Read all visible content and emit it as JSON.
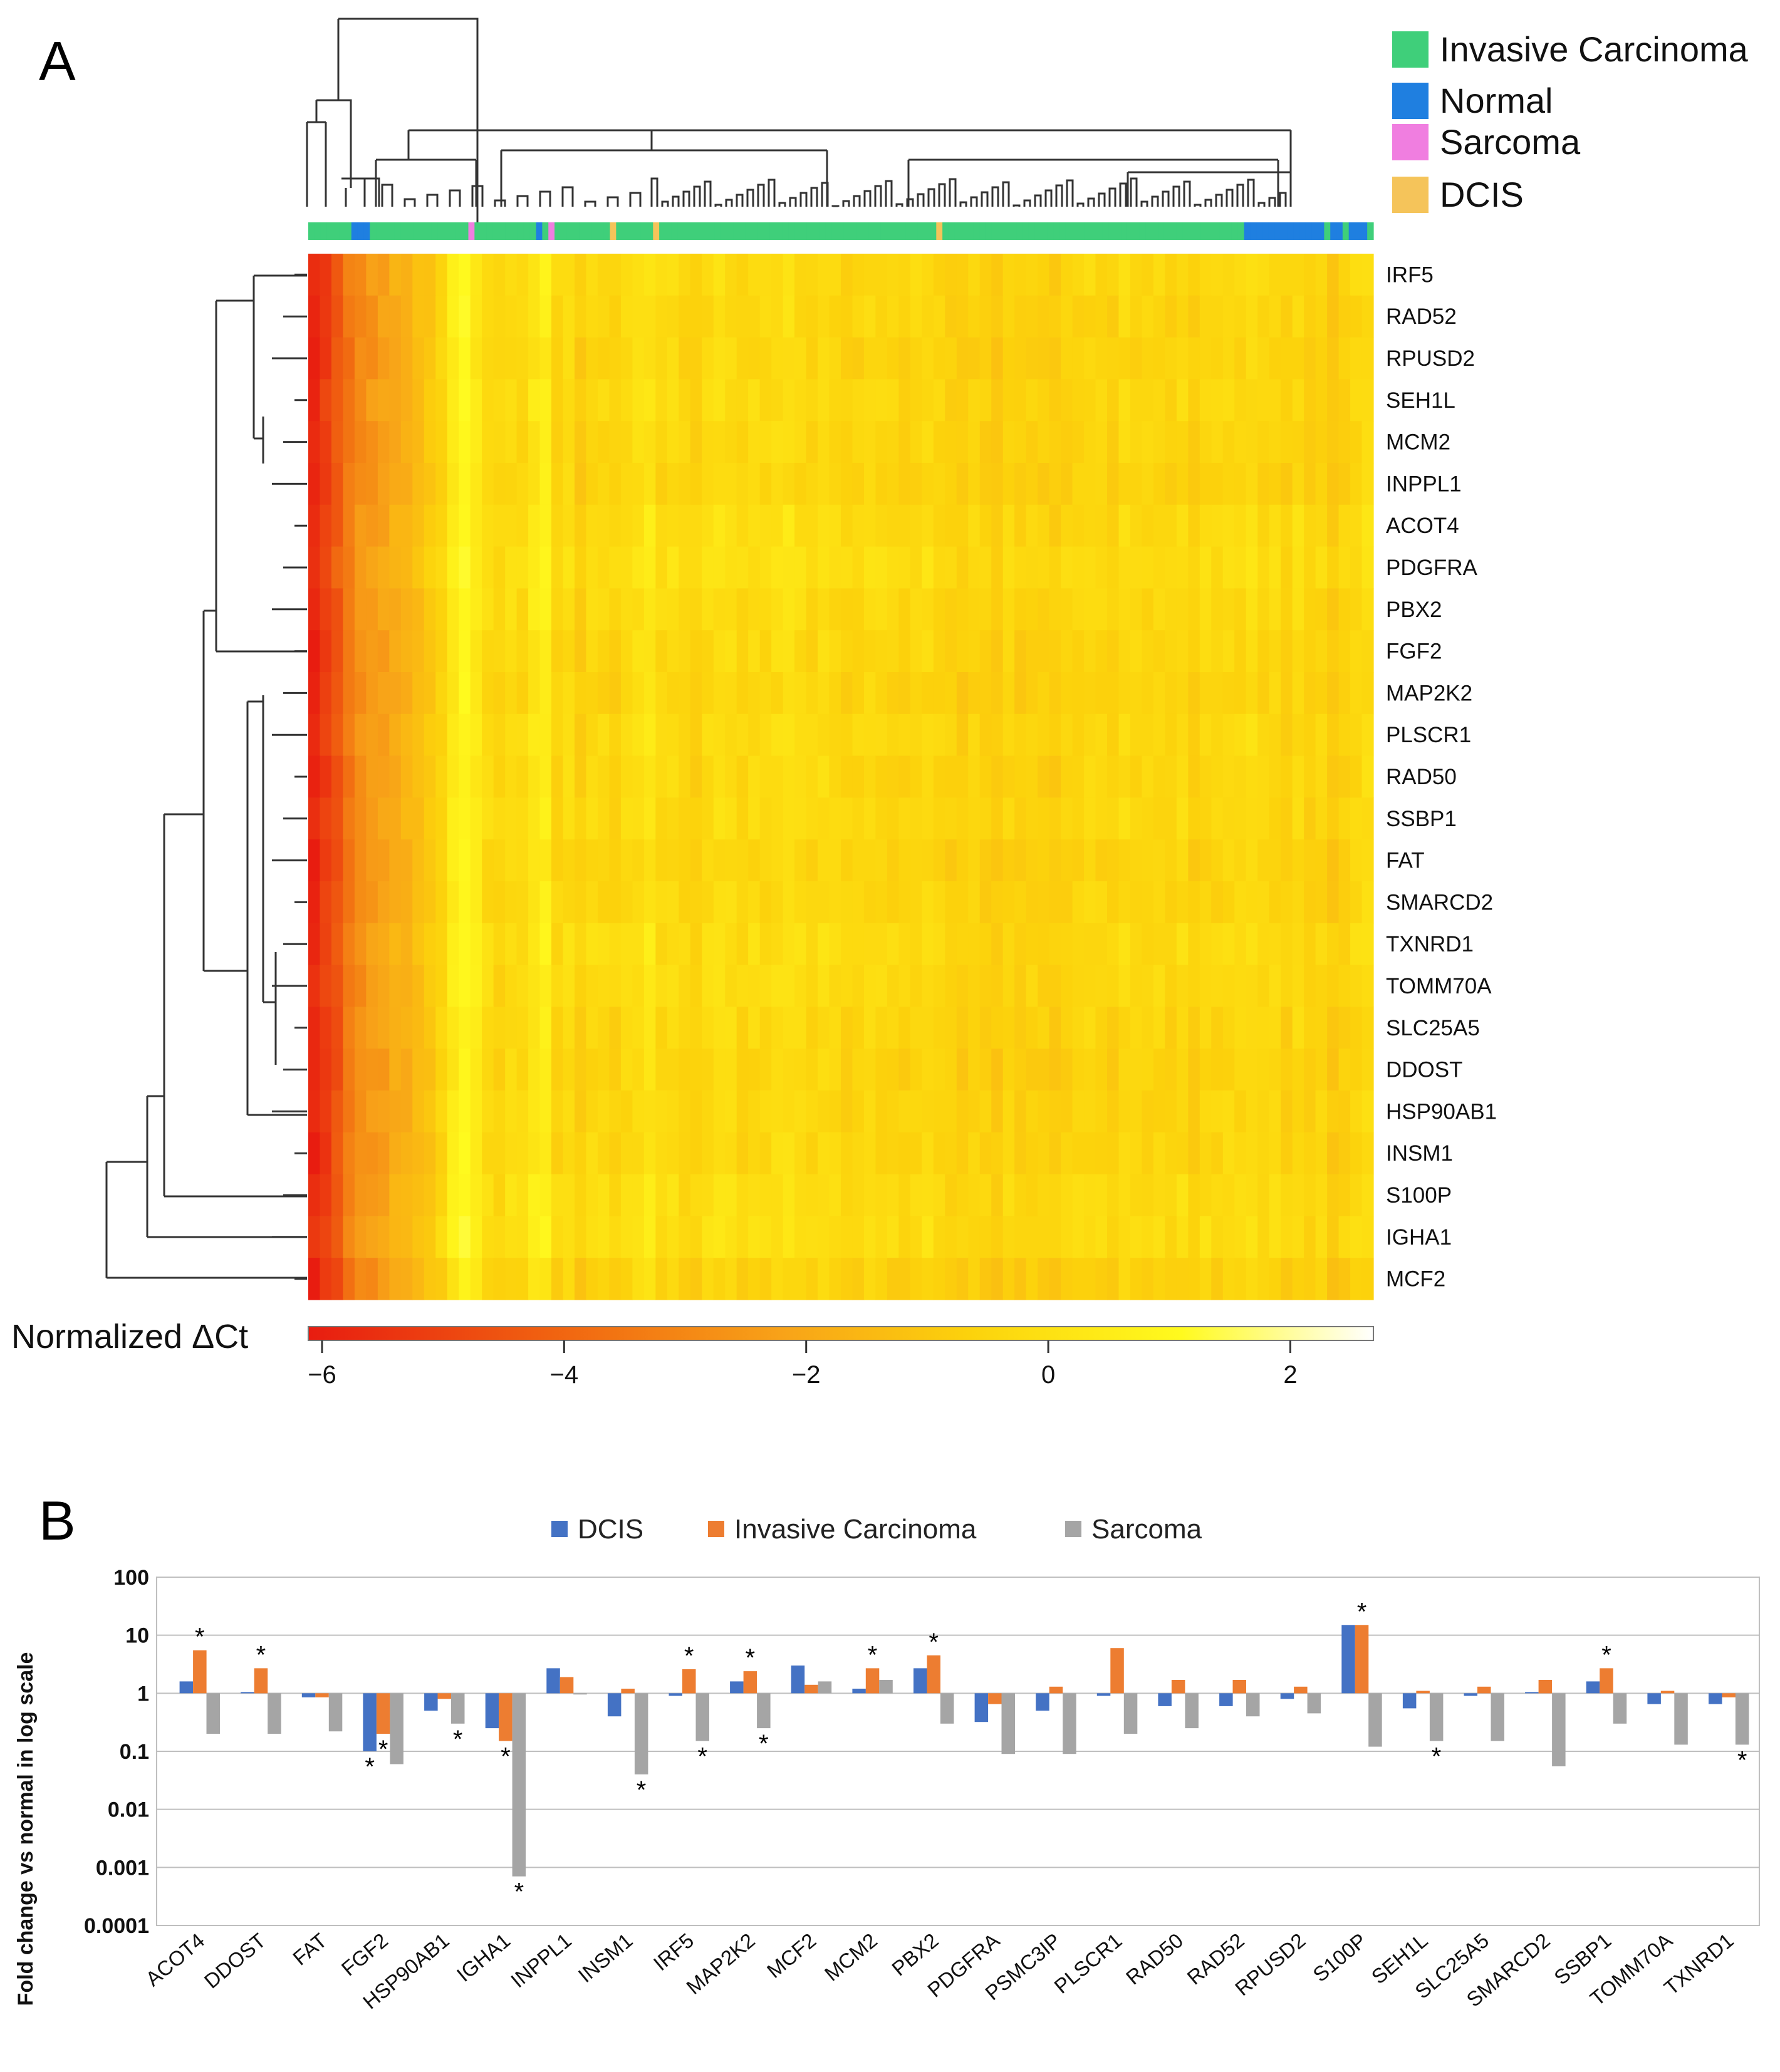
{
  "panel_a": {
    "letter": "A",
    "legend": [
      {
        "label": "Invasive Carcinoma",
        "color": "#3fcf7a"
      },
      {
        "label": "Normal",
        "color": "#1f7fe0"
      },
      {
        "label": "Sarcoma",
        "color": "#f07ee0"
      },
      {
        "label": "DCIS",
        "color": "#f5c45a"
      }
    ],
    "colorbar": {
      "title": "Normalized ΔCt",
      "ticks": [
        "−6",
        "−4",
        "−2",
        "0",
        "2"
      ],
      "range": [
        -6,
        2.8
      ],
      "colors": [
        "#e81c10",
        "#f06010",
        "#f8a418",
        "#fcd20c",
        "#fffa1e",
        "#ffffff"
      ]
    }
  },
  "chart_data": [
    {
      "type": "heatmap",
      "rows": [
        "IRF5",
        "RAD52",
        "RPUSD2",
        "SEH1L",
        "MCM2",
        "INPPL1",
        "ACOT4",
        "PDGFRA",
        "PBX2",
        "FGF2",
        "MAP2K2",
        "PLSCR1",
        "RAD50",
        "SSBP1",
        "FAT",
        "SMARCD2",
        "TXNRD1",
        "TOMM70A",
        "SLC25A5",
        "DDOST",
        "HSP90AB1",
        "INSM1",
        "S100P",
        "IGHA1",
        "MCF2"
      ],
      "column_groups": [
        "Invasive Carcinoma",
        "Invasive Carcinoma",
        "Invasive Carcinoma",
        "Invasive Carcinoma",
        "Invasive Carcinoma",
        "Invasive Carcinoma",
        "Invasive Carcinoma",
        "Normal",
        "Normal",
        "Normal",
        "Invasive Carcinoma",
        "Invasive Carcinoma",
        "Invasive Carcinoma",
        "Invasive Carcinoma",
        "Invasive Carcinoma",
        "Invasive Carcinoma",
        "Invasive Carcinoma",
        "Invasive Carcinoma",
        "Invasive Carcinoma",
        "Invasive Carcinoma",
        "Invasive Carcinoma",
        "Invasive Carcinoma",
        "Invasive Carcinoma",
        "Invasive Carcinoma",
        "Invasive Carcinoma",
        "Invasive Carcinoma",
        "Sarcoma",
        "Invasive Carcinoma",
        "Invasive Carcinoma",
        "Invasive Carcinoma",
        "Invasive Carcinoma",
        "Invasive Carcinoma",
        "Invasive Carcinoma",
        "Invasive Carcinoma",
        "Invasive Carcinoma",
        "Invasive Carcinoma",
        "Invasive Carcinoma",
        "Normal",
        "Invasive Carcinoma",
        "Sarcoma",
        "Invasive Carcinoma",
        "Invasive Carcinoma",
        "Invasive Carcinoma",
        "Invasive Carcinoma",
        "Invasive Carcinoma",
        "Invasive Carcinoma",
        "Invasive Carcinoma",
        "Invasive Carcinoma",
        "Invasive Carcinoma",
        "DCIS",
        "Invasive Carcinoma",
        "Invasive Carcinoma",
        "Invasive Carcinoma",
        "Invasive Carcinoma",
        "Invasive Carcinoma",
        "Invasive Carcinoma",
        "DCIS",
        "Invasive Carcinoma",
        "Invasive Carcinoma",
        "Invasive Carcinoma",
        "Invasive Carcinoma",
        "Invasive Carcinoma",
        "Invasive Carcinoma",
        "Invasive Carcinoma",
        "Invasive Carcinoma",
        "Invasive Carcinoma",
        "Invasive Carcinoma",
        "Invasive Carcinoma",
        "Invasive Carcinoma",
        "Invasive Carcinoma",
        "Invasive Carcinoma",
        "Invasive Carcinoma",
        "Invasive Carcinoma",
        "Invasive Carcinoma",
        "Invasive Carcinoma",
        "Invasive Carcinoma",
        "Invasive Carcinoma",
        "Invasive Carcinoma",
        "Invasive Carcinoma",
        "Invasive Carcinoma",
        "Invasive Carcinoma",
        "Invasive Carcinoma",
        "Invasive Carcinoma",
        "Invasive Carcinoma",
        "Invasive Carcinoma",
        "Invasive Carcinoma",
        "Invasive Carcinoma",
        "Invasive Carcinoma",
        "Invasive Carcinoma",
        "Invasive Carcinoma",
        "Invasive Carcinoma",
        "Invasive Carcinoma",
        "Invasive Carcinoma",
        "Invasive Carcinoma",
        "Invasive Carcinoma",
        "Invasive Carcinoma",
        "Invasive Carcinoma",
        "Invasive Carcinoma",
        "Invasive Carcinoma",
        "Invasive Carcinoma",
        "Invasive Carcinoma",
        "Invasive Carcinoma",
        "DCIS",
        "Invasive Carcinoma",
        "Invasive Carcinoma",
        "Invasive Carcinoma",
        "Invasive Carcinoma",
        "Invasive Carcinoma",
        "Invasive Carcinoma",
        "Invasive Carcinoma",
        "Invasive Carcinoma",
        "Invasive Carcinoma",
        "Invasive Carcinoma",
        "Invasive Carcinoma",
        "Invasive Carcinoma",
        "Invasive Carcinoma",
        "Invasive Carcinoma",
        "Invasive Carcinoma",
        "Invasive Carcinoma",
        "Invasive Carcinoma",
        "Invasive Carcinoma",
        "Invasive Carcinoma",
        "Invasive Carcinoma",
        "Invasive Carcinoma",
        "Invasive Carcinoma",
        "Invasive Carcinoma",
        "Invasive Carcinoma",
        "Invasive Carcinoma",
        "Invasive Carcinoma",
        "Invasive Carcinoma",
        "Invasive Carcinoma",
        "Invasive Carcinoma",
        "Invasive Carcinoma",
        "Invasive Carcinoma",
        "Invasive Carcinoma",
        "Invasive Carcinoma",
        "Invasive Carcinoma",
        "Invasive Carcinoma",
        "Invasive Carcinoma",
        "Invasive Carcinoma",
        "Invasive Carcinoma",
        "Invasive Carcinoma",
        "Invasive Carcinoma",
        "Invasive Carcinoma",
        "Invasive Carcinoma",
        "Invasive Carcinoma",
        "Invasive Carcinoma",
        "Invasive Carcinoma",
        "Invasive Carcinoma",
        "Invasive Carcinoma",
        "Invasive Carcinoma",
        "Invasive Carcinoma",
        "Normal",
        "Normal",
        "Normal",
        "Normal",
        "Normal",
        "Normal",
        "Normal",
        "Normal",
        "Normal",
        "Normal",
        "Normal",
        "Normal",
        "Normal",
        "Invasive Carcinoma",
        "Normal",
        "Normal",
        "Invasive Carcinoma",
        "Normal",
        "Normal",
        "Normal",
        "Invasive Carcinoma"
      ],
      "column_profile": [
        -5.8,
        -5.2,
        -4.5,
        -3.6,
        -3.1,
        -2.8,
        -2.6,
        -2.2,
        -2.0,
        -1.6,
        -1.2,
        -0.6,
        0.4,
        0.9,
        0.3,
        -0.4,
        -0.7,
        -0.3,
        -0.5,
        0.2,
        0.5,
        -0.6,
        -0.3,
        -0.9,
        -0.4,
        -0.5,
        -0.7,
        -0.4,
        -0.2,
        0.1,
        -0.5,
        -0.3,
        -0.6,
        -0.8,
        -0.4,
        -0.2,
        -0.3,
        -0.6,
        -0.4,
        -0.5,
        -0.3,
        -0.1,
        -0.4,
        -0.6,
        -0.3,
        -0.5,
        -0.7,
        -0.6,
        -0.4,
        -0.5,
        -0.6,
        -0.7,
        -0.5,
        -0.4,
        -0.6,
        -0.8,
        -0.9,
        -0.7,
        -0.8,
        -1.0,
        -0.6,
        -0.9,
        -0.7,
        -0.8,
        -1.0,
        -0.7,
        -0.6,
        -0.5,
        -0.6,
        -0.8,
        -0.4,
        -0.5,
        -0.6,
        -0.5,
        -0.7,
        -0.4,
        -0.8,
        -0.5,
        -0.6,
        -0.4,
        -0.5,
        -0.3,
        -0.6,
        -0.5,
        -0.8,
        -0.4,
        -0.9,
        -0.6,
        -1.1,
        -0.8,
        -0.5,
        -0.3
      ],
      "row_offset": [
        0.1,
        0.0,
        -0.1,
        0.1,
        0.0,
        -0.1,
        0.2,
        0.3,
        0.1,
        0.0,
        -0.1,
        0.1,
        0.0,
        0.1,
        -0.1,
        0.0,
        0.2,
        0.1,
        0.0,
        -0.1,
        0.0,
        0.0,
        0.2,
        0.3,
        -0.2
      ],
      "value_range": [
        -6,
        2.8
      ]
    },
    {
      "type": "bar",
      "title": "",
      "ylabel": "Fold change vs normal in log scale",
      "yscale": "log",
      "ylim": [
        0.0001,
        100
      ],
      "yticks": [
        "0.0001",
        "0.001",
        "0.01",
        "0.1",
        "1",
        "10",
        "100"
      ],
      "baseline": 1,
      "categories": [
        "ACOT4",
        "DDOST",
        "FAT",
        "FGF2",
        "HSP90AB1",
        "IGHA1",
        "INPPL1",
        "INSM1",
        "IRF5",
        "MAP2K2",
        "MCF2",
        "MCM2",
        "PBX2",
        "PDGFRA",
        "PSMC3IP",
        "PLSCR1",
        "RAD50",
        "RAD52",
        "RPUSD2",
        "S100P",
        "SEH1L",
        "SLC25A5",
        "SMARCD2",
        "SSBP1",
        "TOMM70A",
        "TXNRD1"
      ],
      "series": [
        {
          "name": "DCIS",
          "color": "#4472c4",
          "values": [
            1.6,
            1.05,
            0.85,
            0.1,
            0.5,
            0.25,
            2.7,
            0.4,
            0.9,
            1.6,
            3.0,
            1.2,
            2.7,
            0.32,
            0.5,
            0.9,
            0.6,
            0.6,
            0.8,
            15,
            0.55,
            0.9,
            1.05,
            1.6,
            0.65,
            0.65
          ]
        },
        {
          "name": "Invasive Carcinoma",
          "color": "#ed7d31",
          "values": [
            5.5,
            2.7,
            0.85,
            0.2,
            0.8,
            0.15,
            1.9,
            1.2,
            2.6,
            2.4,
            1.4,
            2.7,
            4.5,
            0.65,
            1.3,
            6.0,
            1.7,
            1.7,
            1.3,
            15,
            1.1,
            1.3,
            1.7,
            2.7,
            1.1,
            0.85
          ]
        },
        {
          "name": "Sarcoma",
          "color": "#a5a5a5",
          "values": [
            0.2,
            0.2,
            0.22,
            0.06,
            0.3,
            0.0007,
            1.0,
            0.04,
            0.15,
            0.25,
            1.6,
            1.7,
            0.3,
            0.09,
            0.09,
            0.2,
            0.25,
            0.4,
            0.45,
            0.12,
            0.15,
            0.15,
            0.055,
            0.3,
            0.13,
            0.13
          ]
        }
      ],
      "significance": [
        {
          "category": "ACOT4",
          "series": "Invasive Carcinoma",
          "label": "*"
        },
        {
          "category": "DDOST",
          "series": "Invasive Carcinoma",
          "label": "*"
        },
        {
          "category": "FGF2",
          "series": "DCIS",
          "label": "*"
        },
        {
          "category": "FGF2",
          "series": "Invasive Carcinoma",
          "label": "*"
        },
        {
          "category": "HSP90AB1",
          "series": "Sarcoma",
          "label": "*"
        },
        {
          "category": "IGHA1",
          "series": "Invasive Carcinoma",
          "label": "*"
        },
        {
          "category": "IGHA1",
          "series": "Sarcoma",
          "label": "*"
        },
        {
          "category": "INSM1",
          "series": "Sarcoma",
          "label": "*"
        },
        {
          "category": "IRF5",
          "series": "Invasive Carcinoma",
          "label": "*"
        },
        {
          "category": "IRF5",
          "series": "Sarcoma",
          "label": "*"
        },
        {
          "category": "MAP2K2",
          "series": "Invasive Carcinoma",
          "label": "*"
        },
        {
          "category": "MAP2K2",
          "series": "Sarcoma",
          "label": "*"
        },
        {
          "category": "MCM2",
          "series": "Invasive Carcinoma",
          "label": "*"
        },
        {
          "category": "PBX2",
          "series": "Invasive Carcinoma",
          "label": "*"
        },
        {
          "category": "S100P",
          "series": "Invasive Carcinoma",
          "label": "*"
        },
        {
          "category": "SEH1L",
          "series": "Sarcoma",
          "label": "*"
        },
        {
          "category": "SSBP1",
          "series": "Invasive Carcinoma",
          "label": "*"
        },
        {
          "category": "TXNRD1",
          "series": "Sarcoma",
          "label": "*"
        }
      ],
      "legend_position": "top-center",
      "grid": true
    }
  ],
  "panel_b": {
    "letter": "B"
  }
}
